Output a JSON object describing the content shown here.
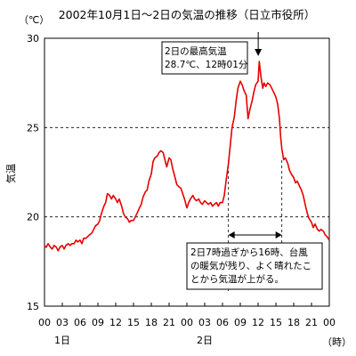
{
  "chart_data": {
    "type": "line",
    "title": "2002年10月1日～2日の気温の推移（日立市役所）",
    "ylabel": "気温",
    "yunit": "（℃）",
    "xunit": "（時）",
    "ylim": [
      15,
      30
    ],
    "yticks": [
      15,
      20,
      25,
      30
    ],
    "gridlines": [
      20,
      25
    ],
    "xlim": [
      0,
      48
    ],
    "xtick_labels": [
      "00",
      "03",
      "06",
      "09",
      "12",
      "15",
      "18",
      "21",
      "00",
      "03",
      "06",
      "09",
      "12",
      "15",
      "18",
      "21",
      "00"
    ],
    "day_labels": [
      {
        "label": "1日",
        "hour": 3
      },
      {
        "label": "2日",
        "hour": 27
      }
    ],
    "line_color": "#e60000",
    "series": [
      {
        "points": [
          [
            0.0,
            18.4
          ],
          [
            0.3,
            18.3
          ],
          [
            0.6,
            18.5
          ],
          [
            1.0,
            18.3
          ],
          [
            1.3,
            18.2
          ],
          [
            1.6,
            18.4
          ],
          [
            2.0,
            18.3
          ],
          [
            2.3,
            18.1
          ],
          [
            2.6,
            18.3
          ],
          [
            3.0,
            18.4
          ],
          [
            3.3,
            18.2
          ],
          [
            3.6,
            18.4
          ],
          [
            4.0,
            18.5
          ],
          [
            4.3,
            18.4
          ],
          [
            4.6,
            18.5
          ],
          [
            5.0,
            18.5
          ],
          [
            5.3,
            18.7
          ],
          [
            5.6,
            18.6
          ],
          [
            6.0,
            18.7
          ],
          [
            6.3,
            18.5
          ],
          [
            6.6,
            18.8
          ],
          [
            7.0,
            18.8
          ],
          [
            7.3,
            18.9
          ],
          [
            7.6,
            19.0
          ],
          [
            8.0,
            19.1
          ],
          [
            8.3,
            19.3
          ],
          [
            8.6,
            19.5
          ],
          [
            9.0,
            19.6
          ],
          [
            9.3,
            19.8
          ],
          [
            9.6,
            20.2
          ],
          [
            10.0,
            20.6
          ],
          [
            10.3,
            20.8
          ],
          [
            10.6,
            21.3
          ],
          [
            11.0,
            21.2
          ],
          [
            11.3,
            21.0
          ],
          [
            11.6,
            21.2
          ],
          [
            12.0,
            21.0
          ],
          [
            12.3,
            20.8
          ],
          [
            12.6,
            21.0
          ],
          [
            13.0,
            20.6
          ],
          [
            13.3,
            20.2
          ],
          [
            13.6,
            20.0
          ],
          [
            14.0,
            19.9
          ],
          [
            14.3,
            19.7
          ],
          [
            14.6,
            19.8
          ],
          [
            15.0,
            19.8
          ],
          [
            15.3,
            20.0
          ],
          [
            15.6,
            20.2
          ],
          [
            16.0,
            20.5
          ],
          [
            16.3,
            20.7
          ],
          [
            16.6,
            21.1
          ],
          [
            17.0,
            21.4
          ],
          [
            17.3,
            21.5
          ],
          [
            17.6,
            22.0
          ],
          [
            18.0,
            22.4
          ],
          [
            18.3,
            23.1
          ],
          [
            18.6,
            23.3
          ],
          [
            19.0,
            23.4
          ],
          [
            19.3,
            23.6
          ],
          [
            19.6,
            23.7
          ],
          [
            20.0,
            23.6
          ],
          [
            20.3,
            23.2
          ],
          [
            20.6,
            22.8
          ],
          [
            21.0,
            23.3
          ],
          [
            21.3,
            23.2
          ],
          [
            21.6,
            22.7
          ],
          [
            22.0,
            22.2
          ],
          [
            22.3,
            21.8
          ],
          [
            22.6,
            21.7
          ],
          [
            23.0,
            21.6
          ],
          [
            23.3,
            21.3
          ],
          [
            23.6,
            21.0
          ],
          [
            24.0,
            20.5
          ],
          [
            24.3,
            20.8
          ],
          [
            24.6,
            21.0
          ],
          [
            25.0,
            21.2
          ],
          [
            25.3,
            21.0
          ],
          [
            25.6,
            20.9
          ],
          [
            26.0,
            21.0
          ],
          [
            26.3,
            20.8
          ],
          [
            26.6,
            20.7
          ],
          [
            27.0,
            20.9
          ],
          [
            27.3,
            20.8
          ],
          [
            27.6,
            20.7
          ],
          [
            28.0,
            20.8
          ],
          [
            28.3,
            20.6
          ],
          [
            28.6,
            20.7
          ],
          [
            29.0,
            20.8
          ],
          [
            29.3,
            20.6
          ],
          [
            29.6,
            20.8
          ],
          [
            30.0,
            20.8
          ],
          [
            30.3,
            21.2
          ],
          [
            30.6,
            22.0
          ],
          [
            31.0,
            23.0
          ],
          [
            31.3,
            24.0
          ],
          [
            31.6,
            25.0
          ],
          [
            32.0,
            25.6
          ],
          [
            32.3,
            26.5
          ],
          [
            32.6,
            27.2
          ],
          [
            33.0,
            27.6
          ],
          [
            33.3,
            27.4
          ],
          [
            33.6,
            27.1
          ],
          [
            34.0,
            26.8
          ],
          [
            34.3,
            25.5
          ],
          [
            34.6,
            26.0
          ],
          [
            35.0,
            26.5
          ],
          [
            35.3,
            27.0
          ],
          [
            35.6,
            27.4
          ],
          [
            36.0,
            27.6
          ],
          [
            36.2,
            28.7
          ],
          [
            36.5,
            27.8
          ],
          [
            36.8,
            27.2
          ],
          [
            37.0,
            27.5
          ],
          [
            37.3,
            27.3
          ],
          [
            37.6,
            27.5
          ],
          [
            38.0,
            27.4
          ],
          [
            38.3,
            27.2
          ],
          [
            38.6,
            27.0
          ],
          [
            39.0,
            26.7
          ],
          [
            39.3,
            26.3
          ],
          [
            39.6,
            25.5
          ],
          [
            39.8,
            24.5
          ],
          [
            40.0,
            23.8
          ],
          [
            40.3,
            23.2
          ],
          [
            40.6,
            23.3
          ],
          [
            41.0,
            23.0
          ],
          [
            41.3,
            22.6
          ],
          [
            41.6,
            22.4
          ],
          [
            42.0,
            22.2
          ],
          [
            42.3,
            21.9
          ],
          [
            42.6,
            22.0
          ],
          [
            43.0,
            21.7
          ],
          [
            43.3,
            21.5
          ],
          [
            43.6,
            21.2
          ],
          [
            44.0,
            20.6
          ],
          [
            44.3,
            20.2
          ],
          [
            44.6,
            19.9
          ],
          [
            45.0,
            19.7
          ],
          [
            45.3,
            19.4
          ],
          [
            45.6,
            19.6
          ],
          [
            46.0,
            19.3
          ],
          [
            46.3,
            19.2
          ],
          [
            46.6,
            19.3
          ],
          [
            47.0,
            19.2
          ],
          [
            47.3,
            19.0
          ],
          [
            47.6,
            18.9
          ],
          [
            48.0,
            18.7
          ]
        ]
      }
    ],
    "annotations": [
      {
        "lines": [
          "2日の最高気温",
          "28.7℃、12時01分"
        ],
        "point_hour": 36.02,
        "point_value": 28.7
      },
      {
        "lines": [
          "2日7時過ぎから16時、台風",
          "の暖気が残り、よく晴れたこ",
          "とから気温が上がる。"
        ],
        "span_start_hour": 31,
        "span_end_hour": 40,
        "span_value": 18.8
      }
    ]
  }
}
